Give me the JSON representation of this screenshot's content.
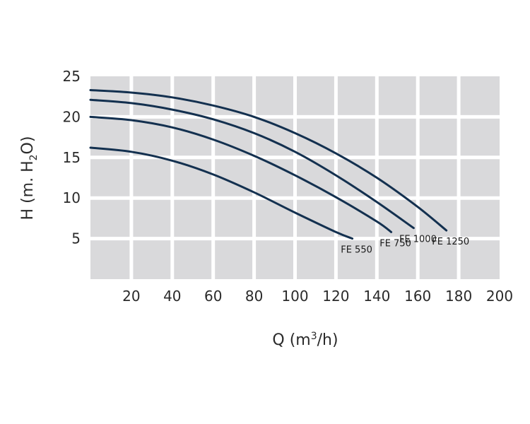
{
  "chart_data": {
    "type": "line",
    "title": "",
    "xlabel_main": "Q (m",
    "xlabel_sup": "3",
    "xlabel_end": "/h)",
    "ylabel_main": "H (m. H",
    "ylabel_sub": "2",
    "ylabel_end": "O)",
    "xlim": [
      0,
      200
    ],
    "ylim": [
      0,
      25
    ],
    "x_ticks": [
      20,
      40,
      60,
      80,
      100,
      120,
      140,
      160,
      180,
      200
    ],
    "y_ticks": [
      5,
      10,
      15,
      20,
      25
    ],
    "grid": true,
    "colors": {
      "plot_bg": "#d9d9db",
      "grid": "#ffffff",
      "line": "#13304f"
    },
    "series": [
      {
        "name": "FE 550",
        "x": [
          0,
          20,
          40,
          60,
          80,
          100,
          120,
          128
        ],
        "y": [
          16.2,
          15.7,
          14.6,
          12.9,
          10.7,
          8.2,
          5.8,
          5.0
        ]
      },
      {
        "name": "FE 750",
        "x": [
          0,
          20,
          40,
          60,
          80,
          100,
          120,
          140,
          147
        ],
        "y": [
          20.0,
          19.6,
          18.7,
          17.2,
          15.2,
          12.8,
          10.1,
          7.1,
          5.8
        ]
      },
      {
        "name": "FE 1000",
        "x": [
          0,
          20,
          40,
          60,
          80,
          100,
          120,
          140,
          158
        ],
        "y": [
          22.1,
          21.7,
          20.9,
          19.7,
          18.0,
          15.7,
          12.8,
          9.5,
          6.3
        ]
      },
      {
        "name": "FE 1250",
        "x": [
          0,
          20,
          40,
          60,
          80,
          100,
          120,
          140,
          160,
          174
        ],
        "y": [
          23.3,
          23.0,
          22.4,
          21.4,
          20.0,
          18.0,
          15.5,
          12.5,
          8.9,
          6.0
        ]
      }
    ]
  }
}
